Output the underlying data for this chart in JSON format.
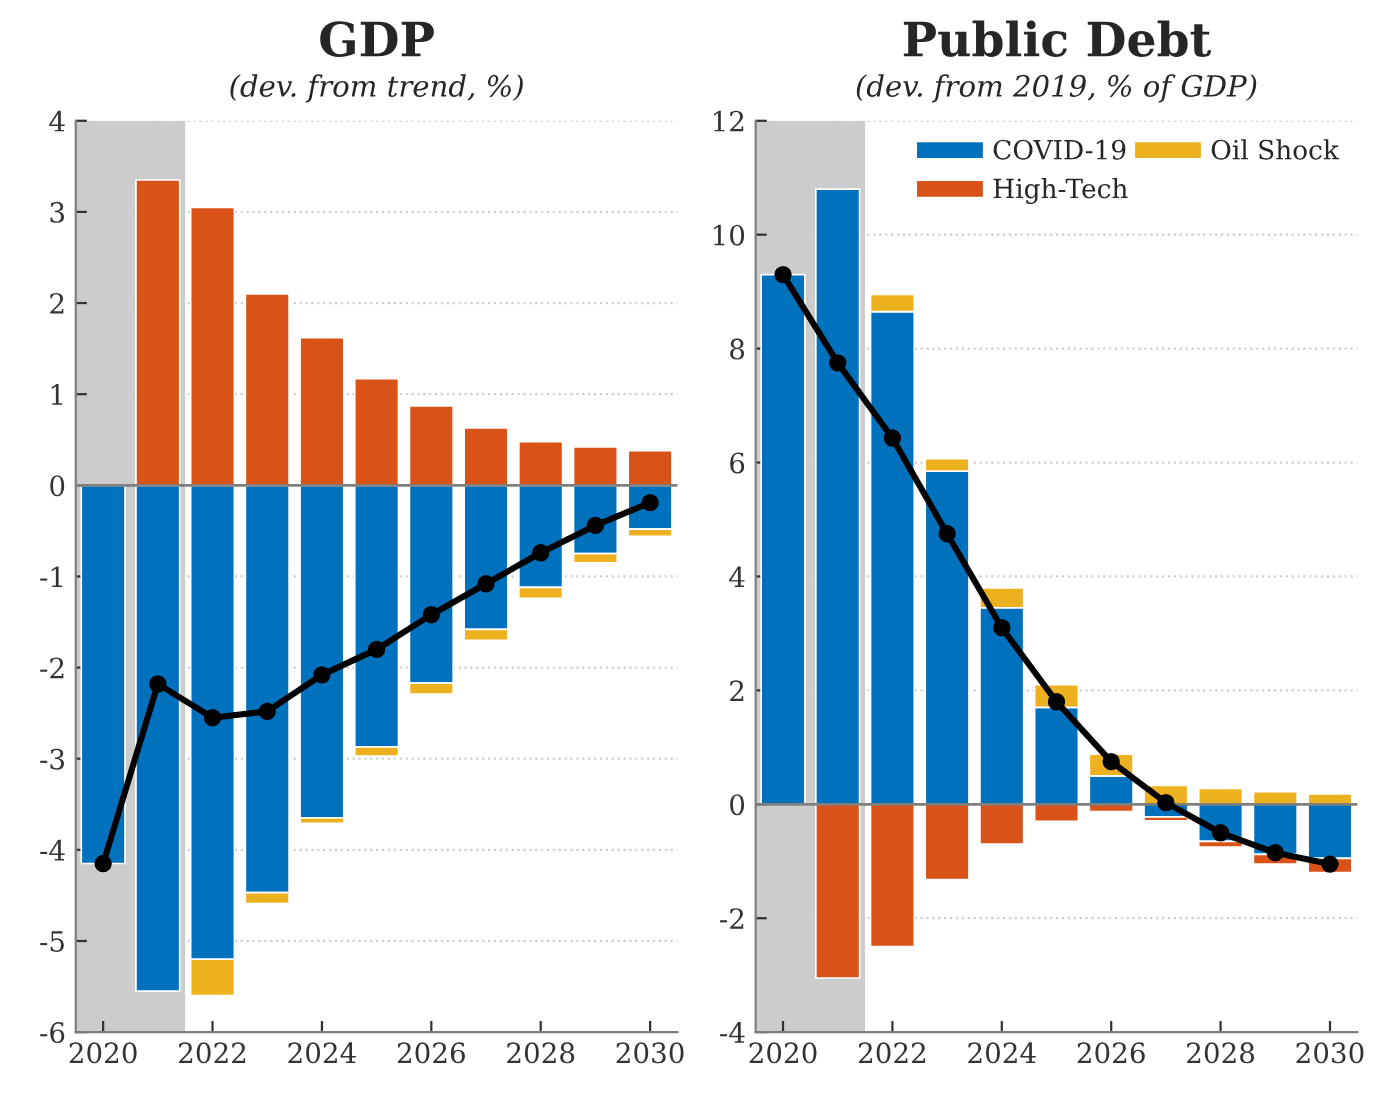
{
  "chart_data": [
    {
      "type": "bar",
      "title": "GDP",
      "subtitle": "(dev. from trend, %)",
      "stacked": true,
      "x": [
        2020,
        2021,
        2022,
        2023,
        2024,
        2025,
        2026,
        2027,
        2028,
        2029,
        2030
      ],
      "series": [
        {
          "color": "#0072bd",
          "values": [
            -4.15,
            -5.55,
            -5.2,
            -4.47,
            -3.65,
            -2.87,
            -2.17,
            -1.58,
            -1.12,
            -0.75,
            -0.48
          ]
        },
        {
          "color": "#d95319",
          "values": [
            0,
            3.35,
            3.05,
            2.1,
            1.62,
            1.17,
            0.87,
            0.63,
            0.48,
            0.42,
            0.38
          ]
        },
        {
          "color": "#edb120",
          "values": [
            0,
            0,
            -0.4,
            -0.12,
            -0.06,
            -0.1,
            -0.12,
            -0.12,
            -0.12,
            -0.1,
            -0.08
          ]
        },
        {
          "type": "line",
          "color": "#000000",
          "marker": "circle",
          "values": [
            -4.15,
            -2.18,
            -2.55,
            -2.48,
            -2.08,
            -1.8,
            -1.42,
            -1.08,
            -0.74,
            -0.44,
            -0.19
          ]
        }
      ],
      "xlim": [
        2019.5,
        2030.5
      ],
      "xticks": [
        2020,
        2022,
        2024,
        2026,
        2028,
        2030
      ],
      "ylim": [
        -6,
        4
      ],
      "yticks": [
        -6,
        -5,
        -4,
        -3,
        -2,
        -1,
        0,
        1,
        2,
        3,
        4
      ],
      "grid": "y",
      "legend": false,
      "bands": [
        {
          "axis": "x",
          "from": 2019.5,
          "to": 2021.5,
          "color": "#cccccc"
        }
      ],
      "ref_lines": [
        {
          "axis": "y",
          "value": 0,
          "color": "#7f7f7f"
        }
      ]
    },
    {
      "type": "bar",
      "title": "Public Debt",
      "subtitle": "(dev. from 2019, % of GDP)",
      "stacked": true,
      "x": [
        2020,
        2021,
        2022,
        2023,
        2024,
        2025,
        2026,
        2027,
        2028,
        2029,
        2030
      ],
      "series": [
        {
          "name": "COVID-19",
          "color": "#0072bd",
          "values": [
            9.3,
            10.8,
            8.65,
            5.85,
            3.45,
            1.7,
            0.5,
            -0.22,
            -0.65,
            -0.88,
            -0.95
          ]
        },
        {
          "name": "High-Tech",
          "color": "#d95319",
          "values": [
            0,
            -3.05,
            -2.5,
            -1.32,
            -0.7,
            -0.3,
            -0.13,
            -0.07,
            -0.1,
            -0.17,
            -0.25
          ]
        },
        {
          "name": "Oil Shock",
          "color": "#edb120",
          "values": [
            0,
            0,
            0.3,
            0.22,
            0.35,
            0.4,
            0.38,
            0.33,
            0.28,
            0.22,
            0.18
          ]
        },
        {
          "type": "line",
          "color": "#000000",
          "marker": "circle",
          "values": [
            9.3,
            7.75,
            6.43,
            4.75,
            3.1,
            1.8,
            0.75,
            0.03,
            -0.5,
            -0.85,
            -1.05
          ]
        }
      ],
      "xlim": [
        2019.5,
        2030.5
      ],
      "xticks": [
        2020,
        2022,
        2024,
        2026,
        2028,
        2030
      ],
      "ylim": [
        -4,
        12
      ],
      "yticks": [
        -4,
        -2,
        0,
        2,
        4,
        6,
        8,
        10,
        12
      ],
      "grid": "y",
      "legend": "top right",
      "bands": [
        {
          "axis": "x",
          "from": 2019.5,
          "to": 2021.5,
          "color": "#cccccc"
        }
      ],
      "ref_lines": [
        {
          "axis": "y",
          "value": 0,
          "color": "#7f7f7f"
        }
      ]
    }
  ]
}
